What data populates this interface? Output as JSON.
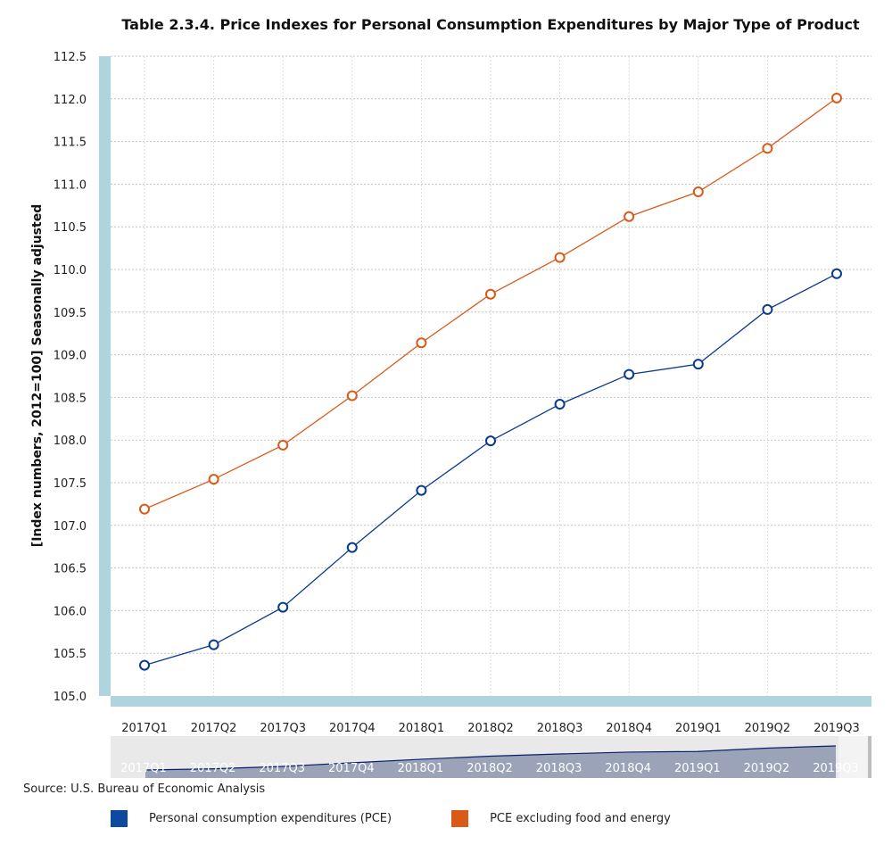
{
  "chart_data": {
    "type": "line",
    "title": "Table 2.3.4. Price Indexes for Personal Consumption Expenditures by Major Type of Product",
    "ylabel": "[Index numbers, 2012=100] Seasonally adjusted",
    "xlabel": "",
    "categories": [
      "2017Q1",
      "2017Q2",
      "2017Q3",
      "2017Q4",
      "2018Q1",
      "2018Q2",
      "2018Q3",
      "2018Q4",
      "2019Q1",
      "2019Q2",
      "2019Q3"
    ],
    "ylim": [
      105.0,
      112.5
    ],
    "yticks": [
      "105.0",
      "105.5",
      "106.0",
      "106.5",
      "107.0",
      "107.5",
      "108.0",
      "108.5",
      "109.0",
      "109.5",
      "110.0",
      "110.5",
      "111.0",
      "111.5",
      "112.0",
      "112.5"
    ],
    "grid": true,
    "legend_position": "bottom",
    "series": [
      {
        "name": "Personal consumption expenditures (PCE)",
        "color": "#0b3a8c",
        "values": [
          105.36,
          105.6,
          106.04,
          106.74,
          107.41,
          107.99,
          108.42,
          108.77,
          108.89,
          109.53,
          109.95
        ]
      },
      {
        "name": "PCE excluding food and energy",
        "color": "#d95a18",
        "values": [
          107.19,
          107.54,
          107.94,
          108.52,
          109.14,
          109.71,
          110.14,
          110.62,
          110.91,
          111.42,
          112.01
        ]
      }
    ]
  },
  "source": "Source: U.S. Bureau of Economic Analysis",
  "colors": {
    "axis_band": "#aed4de",
    "navigator_bg": "#e9e9e9",
    "navigator_fill": "#9aa3b8",
    "navigator_line": "#0b1f6e"
  }
}
